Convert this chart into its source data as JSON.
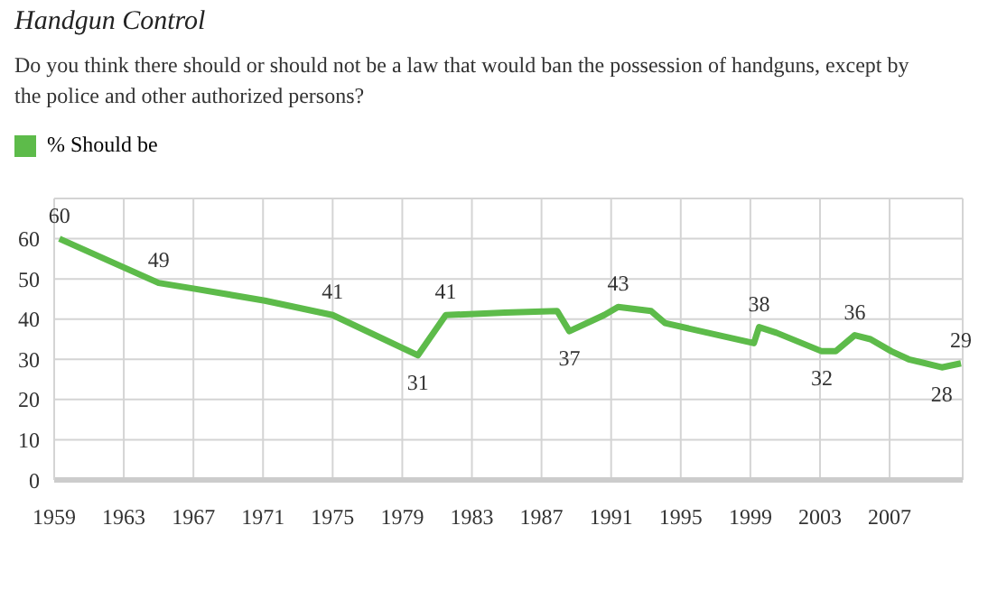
{
  "chart_data": {
    "type": "line",
    "title": "Handgun Control",
    "subtitle": "Do you think there should or should not be a law that would ban the possession of handguns, except by the police and other authorized persons?",
    "x": [
      1959.3,
      1965,
      1967,
      1971.1,
      1975,
      1979.9,
      1981.5,
      1984.9,
      1987.9,
      1988.6,
      1990.6,
      1991.4,
      1993.3,
      1994.1,
      1999.2,
      1999.5,
      2000.5,
      2003.1,
      2003.9,
      2005,
      2005.9,
      2007.1,
      2008.1,
      2010,
      2011.1
    ],
    "series": [
      {
        "name": "% Should be",
        "color": "#5dbb4a",
        "values": [
          60,
          49,
          47.6,
          44.6,
          41,
          31,
          41,
          41.6,
          42,
          37,
          41,
          43,
          42,
          39,
          34,
          38,
          36.6,
          32,
          32,
          36,
          35,
          32,
          30,
          28,
          29
        ],
        "value_labels": [
          "60",
          "49",
          null,
          null,
          "41",
          "31",
          "41",
          null,
          null,
          "37",
          null,
          "43",
          null,
          null,
          null,
          "38",
          null,
          "32",
          null,
          "36",
          null,
          null,
          null,
          "28",
          "29"
        ]
      }
    ],
    "xlim": [
      1959,
      2011.2
    ],
    "xticks": [
      1959,
      1963,
      1967,
      1971,
      1975,
      1979,
      1983,
      1987,
      1991,
      1995,
      1999,
      2003,
      2007
    ],
    "ylim": [
      0,
      70
    ],
    "yticks": [
      0,
      10,
      20,
      30,
      40,
      50,
      60
    ],
    "grid": true,
    "legend": "top left",
    "marker": "none",
    "line_style": "solid"
  }
}
